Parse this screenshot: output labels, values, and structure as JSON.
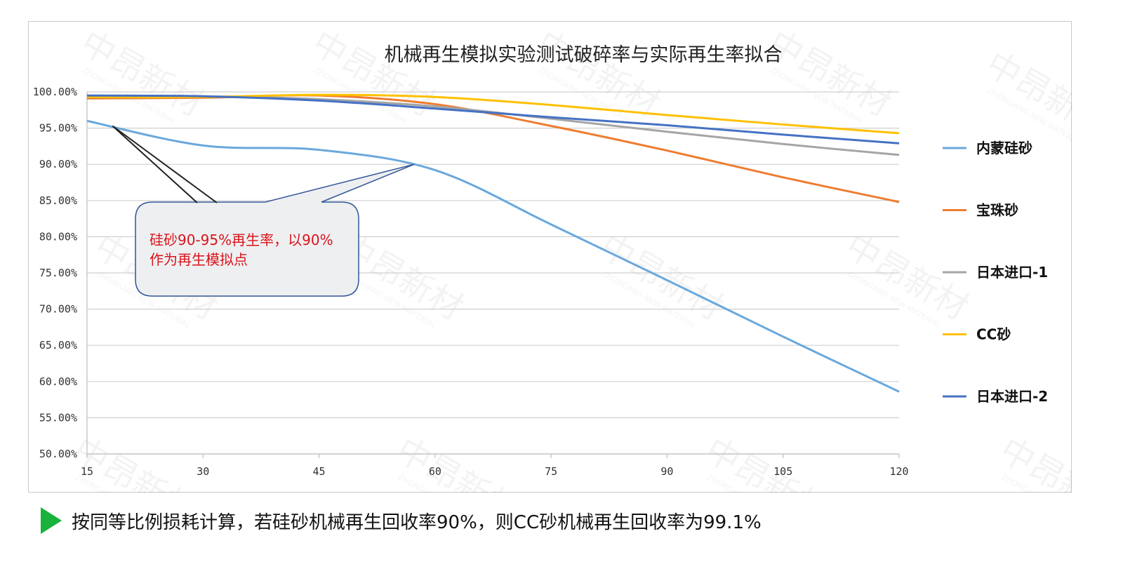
{
  "chart_data": {
    "type": "line",
    "title": "机械再生模拟实验测试破碎率与实际再生率拟合",
    "xlabel": "",
    "ylabel": "",
    "x": [
      15,
      30,
      45,
      60,
      75,
      90,
      105,
      120
    ],
    "x_ticks": [
      "15",
      "30",
      "45",
      "60",
      "75",
      "90",
      "105",
      "120"
    ],
    "xlim": [
      15,
      120
    ],
    "ylim": [
      50,
      100
    ],
    "y_ticks": [
      "50.00%",
      "55.00%",
      "60.00%",
      "65.00%",
      "70.00%",
      "75.00%",
      "80.00%",
      "85.00%",
      "90.00%",
      "95.00%",
      "100.00%"
    ],
    "grid": "horizontal",
    "legend_position": "right",
    "series": [
      {
        "name": "内蒙硅砂",
        "color": "#6aa8dc",
        "values": [
          96.0,
          92.6,
          92.0,
          89.2,
          81.7,
          74.0,
          66.2,
          58.6
        ]
      },
      {
        "name": "宝珠砂",
        "color": "#ed7d31",
        "values": [
          99.1,
          99.2,
          99.5,
          98.3,
          95.3,
          91.9,
          88.2,
          84.8
        ]
      },
      {
        "name": "日本进口-1",
        "color": "#a5a5a5",
        "values": [
          99.4,
          99.4,
          99.0,
          98.0,
          96.3,
          94.5,
          92.8,
          91.3
        ]
      },
      {
        "name": "CC砂",
        "color": "#ffc000",
        "values": [
          99.3,
          99.3,
          99.6,
          99.3,
          98.2,
          96.8,
          95.5,
          94.3
        ]
      },
      {
        "name": "日本进口-2",
        "color": "#4472c4",
        "values": [
          99.5,
          99.4,
          98.8,
          97.7,
          96.5,
          95.4,
          94.1,
          92.9
        ]
      }
    ],
    "annotations": [
      {
        "lines": [
          "硅砂90-95%再生率，以90%",
          "作为再生模拟点"
        ]
      }
    ]
  },
  "watermark": {
    "brand": "中昂新材",
    "brand_en": "ZHONGANG NEW MATERIAL"
  },
  "footnote": {
    "text": "按同等比例损耗计算，若硅砂机械再生回收率90%，则CC砂机械再生回收率为99.1%",
    "arrow_color": "#19b23b"
  }
}
